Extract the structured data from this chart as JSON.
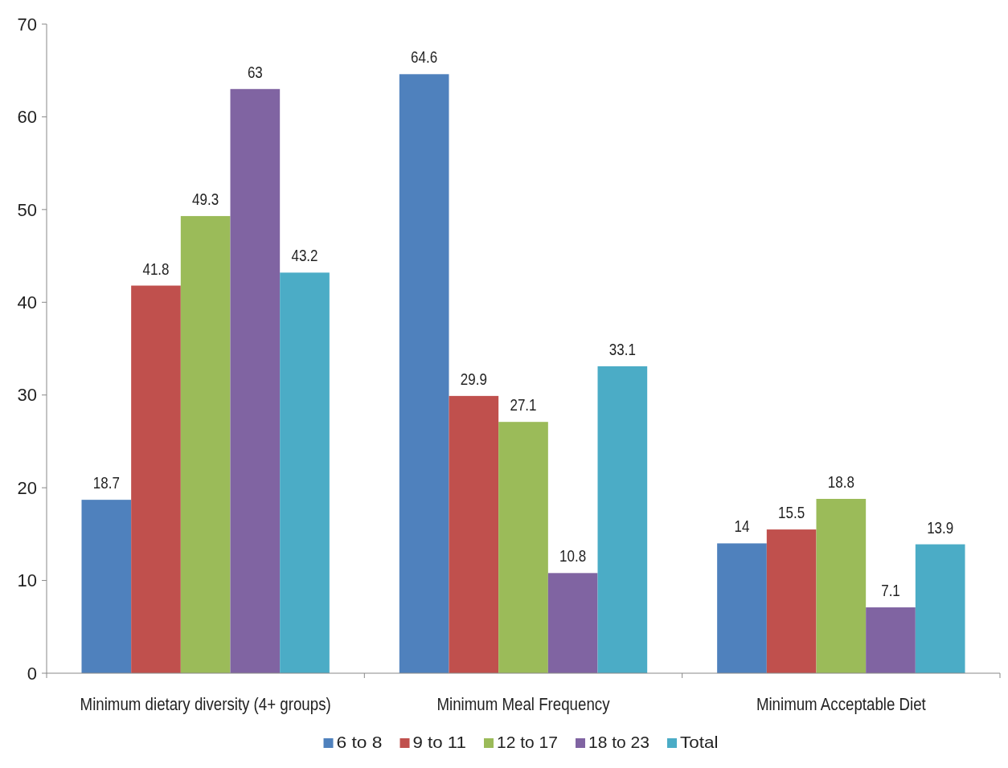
{
  "chart_data": {
    "type": "bar",
    "categories": [
      "Minimum dietary diversity (4+ groups)",
      "Minimum Meal Frequency",
      "Minimum Acceptable Diet"
    ],
    "series": [
      {
        "name": "6 to 8",
        "color": "#4f81bd",
        "values": [
          18.7,
          64.6,
          14
        ]
      },
      {
        "name": "9 to 11",
        "color": "#c0504d",
        "values": [
          41.8,
          29.9,
          15.5
        ]
      },
      {
        "name": "12 to 17",
        "color": "#9bbb59",
        "values": [
          49.3,
          27.1,
          18.8
        ]
      },
      {
        "name": "18 to 23",
        "color": "#8064a2",
        "values": [
          63,
          10.8,
          7.1
        ]
      },
      {
        "name": "Total",
        "color": "#4bacc6",
        "values": [
          43.2,
          33.1,
          13.9
        ]
      }
    ],
    "ylim": [
      0,
      70
    ],
    "yticks": [
      0,
      10,
      20,
      30,
      40,
      50,
      60,
      70
    ],
    "data_labels": true,
    "legend": "bottom",
    "grid": false
  }
}
